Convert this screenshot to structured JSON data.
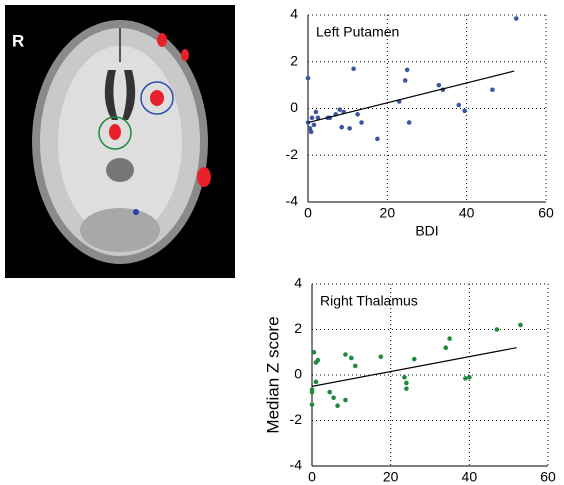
{
  "image": {
    "label": "R"
  },
  "chart_data": [
    {
      "type": "scatter",
      "title": "Left Putamen",
      "x_label": "BDI",
      "color": "#3a56a5",
      "x": [
        0,
        0,
        0.5,
        0.8,
        1,
        1.5,
        2,
        2.5,
        5,
        5.5,
        7,
        8,
        8.5,
        9,
        10.5,
        11.5,
        12.5,
        13.5,
        17.5,
        23,
        24.5,
        25,
        25.5,
        33,
        34,
        38,
        39.5,
        46.5,
        52.5
      ],
      "values": [
        1.3,
        -0.6,
        -0.85,
        -1.0,
        -0.4,
        -0.7,
        -0.15,
        -0.4,
        -0.4,
        -0.4,
        -0.25,
        -0.05,
        -0.8,
        -0.15,
        -0.85,
        1.7,
        -0.25,
        -0.6,
        -1.3,
        0.3,
        1.2,
        1.65,
        -0.6,
        1.0,
        0.8,
        0.15,
        -0.1,
        0.8,
        3.85
      ],
      "fit_line": {
        "x": [
          0,
          52
        ],
        "y": [
          -0.6,
          1.6
        ]
      },
      "xlim": [
        0,
        60
      ],
      "xticks": [
        0,
        20,
        40,
        60
      ],
      "ylim": [
        -4,
        4
      ],
      "yticks": [
        -4,
        -2,
        0,
        2,
        4
      ],
      "grid": true
    },
    {
      "type": "scatter",
      "title": "Right Thalamus",
      "y_label": "Median Z score",
      "color": "#1e8a3e",
      "x": [
        0,
        0,
        0,
        0.5,
        1,
        1.5,
        1,
        4.5,
        5.5,
        6.5,
        8.5,
        8.5,
        10,
        11,
        17.5,
        23.5,
        24,
        24,
        26,
        34,
        35,
        39,
        40,
        47,
        53
      ],
      "values": [
        -0.65,
        -1.3,
        -0.75,
        1.0,
        0.55,
        0.65,
        -0.3,
        -0.75,
        -1.0,
        -1.35,
        0.9,
        -1.1,
        0.75,
        0.4,
        0.8,
        -0.1,
        -0.35,
        -0.6,
        0.7,
        1.2,
        1.6,
        -0.15,
        -0.1,
        2.0,
        2.2
      ],
      "fit_line": {
        "x": [
          0,
          52
        ],
        "y": [
          -0.5,
          1.2
        ]
      },
      "xlim": [
        0,
        60
      ],
      "xticks": [
        0,
        20,
        40,
        60
      ],
      "ylim": [
        -4,
        4
      ],
      "yticks": [
        -4,
        -2,
        0,
        2,
        4
      ],
      "grid": true
    }
  ]
}
